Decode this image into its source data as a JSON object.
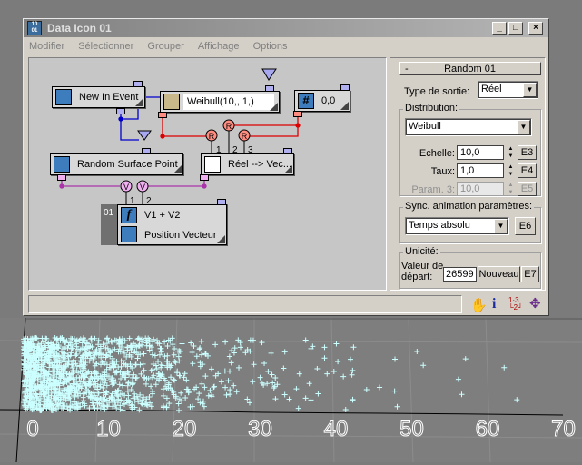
{
  "window": {
    "title": "Data Icon 01",
    "buttons": [
      "_",
      "□",
      "×"
    ]
  },
  "menu": [
    "Modifier",
    "Sélectionner",
    "Grouper",
    "Affichage",
    "Options"
  ],
  "graph": {
    "nodes": {
      "new_in_event": "New In Event",
      "weibull": "Weibull(10,, 1,)",
      "constant": "0,0",
      "random_surface_point": "Random Surface Point",
      "real_to_vector": "Réel --> Vec...",
      "sum": "V1 + V2",
      "position_vector": "Position Vecteur",
      "sum_index": "01"
    },
    "converters": {
      "real": "R",
      "vector": "V"
    },
    "port_numbers": [
      "1",
      "2",
      "3"
    ],
    "wire_colors": {
      "event": "#0000cc",
      "real": "#dd0000",
      "vector": "#aa33aa"
    }
  },
  "panel": {
    "rollout_toggle": "-",
    "rollout_title": "Random 01",
    "output_type_label": "Type de sortie:",
    "output_type_value": "Réel",
    "distribution_group": "Distribution:",
    "distribution_value": "Weibull",
    "scale_label": "Echelle:",
    "scale_value": "10,0",
    "scale_btn": "E3",
    "rate_label": "Taux:",
    "rate_value": "1,0",
    "rate_btn": "E4",
    "param3_label": "Param. 3:",
    "param3_value": "10,0",
    "param3_btn": "E5",
    "sync_group": "Sync. animation paramètres:",
    "sync_value": "Temps absolu",
    "sync_btn": "E6",
    "uniqueness_group": "Unicité:",
    "seed_label_1": "Valeur de",
    "seed_label_2": "départ:",
    "seed_value": "26599",
    "new_btn": "Nouveau",
    "seed_btn": "E7"
  },
  "status_icons": [
    "pan-hand-icon",
    "info-icon",
    "numbering-icon",
    "move-view-icon"
  ],
  "viewport": {
    "axis_labels": [
      "0",
      "10",
      "20",
      "30",
      "40",
      "50",
      "60",
      "70"
    ],
    "particle_color": "#ccffff",
    "distribution": {
      "type": "weibull",
      "scale": 10,
      "shape": 1
    }
  }
}
